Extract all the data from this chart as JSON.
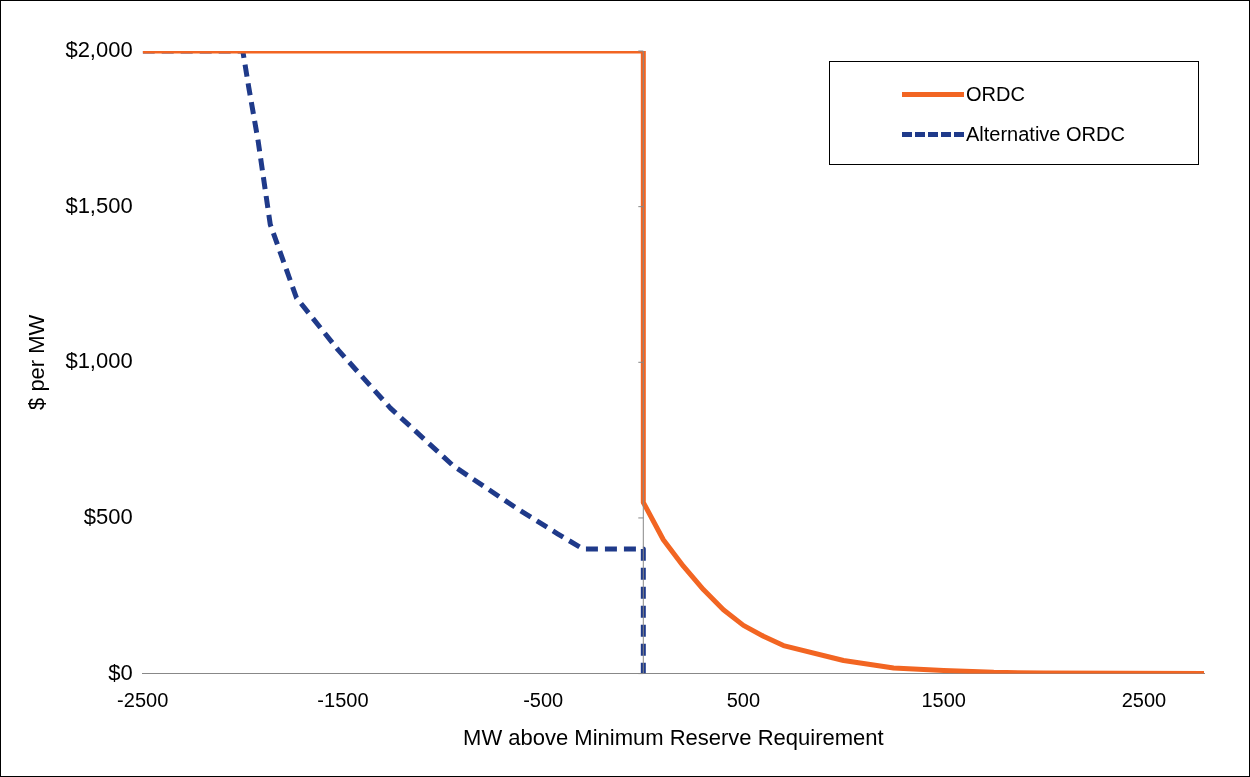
{
  "chart_data": {
    "type": "line",
    "xlabel": "MW above Minimum Reserve Requirement",
    "ylabel": "$ per MW",
    "xlim": [
      -2500,
      2800
    ],
    "xticks": [
      -2500,
      -1500,
      -500,
      500,
      1500,
      2500
    ],
    "ylim": [
      0,
      2000
    ],
    "yticks": [
      {
        "value": 0,
        "label": "$0"
      },
      {
        "value": 500,
        "label": "$500"
      },
      {
        "value": 1000,
        "label": "$1,000"
      },
      {
        "value": 1500,
        "label": "$1,500"
      },
      {
        "value": 2000,
        "label": "$2,000"
      }
    ],
    "grid": false,
    "legend": "top right",
    "marker": "none",
    "series": [
      {
        "name": "ORDC",
        "color": "#f26522",
        "line_style": "solid",
        "x": [
          -2500,
          0,
          0,
          100,
          200,
          300,
          400,
          500,
          600,
          700,
          1000,
          1250,
          1500,
          1750,
          2000,
          2800
        ],
        "values": [
          2000,
          2000,
          550,
          430,
          345,
          270,
          205,
          155,
          120,
          90,
          42,
          18,
          10,
          4,
          2,
          0
        ]
      },
      {
        "name": "Alternative ORDC",
        "color": "#1f3a8a",
        "line_style": "dashed",
        "x": [
          -2500,
          -2000,
          -1970,
          -1924,
          -1863,
          -1732,
          -1523,
          -1263,
          -950,
          -637,
          -428,
          -300,
          0,
          0
        ],
        "values": [
          2000,
          2000,
          1882,
          1713,
          1443,
          1207,
          1039,
          853,
          668,
          533,
          449,
          400,
          400,
          0
        ]
      }
    ]
  }
}
